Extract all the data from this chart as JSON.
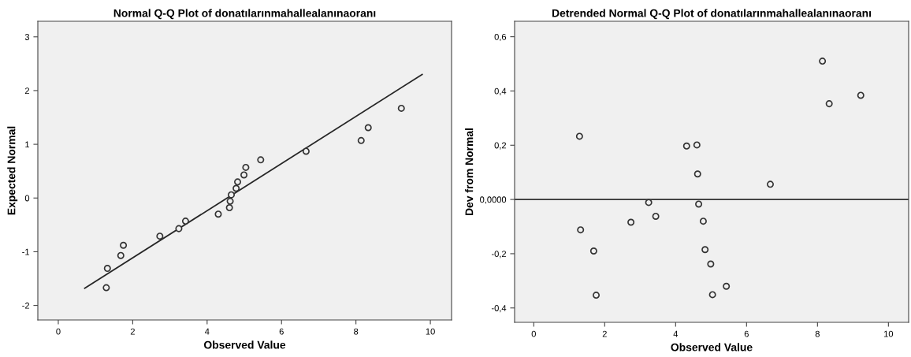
{
  "chart_data": [
    {
      "type": "scatter",
      "title": "Normal Q-Q Plot of donatılarınmahallealanınaoranı",
      "xlabel": "Observed Value",
      "ylabel": "Expected Normal",
      "x": [
        1.29,
        1.32,
        1.68,
        1.75,
        2.73,
        3.24,
        3.42,
        4.3,
        4.6,
        4.62,
        4.65,
        4.78,
        4.82,
        4.99,
        5.04,
        5.44,
        6.66,
        8.14,
        8.33,
        9.22
      ],
      "series": [
        {
          "color": "#333333",
          "marker": "circle",
          "values": [
            -1.67,
            -1.31,
            -1.07,
            -0.88,
            -0.71,
            -0.57,
            -0.43,
            -0.3,
            -0.18,
            -0.06,
            0.06,
            0.18,
            0.3,
            0.43,
            0.57,
            0.71,
            0.87,
            1.07,
            1.31,
            1.67
          ]
        },
        {
          "type": "line",
          "color": "#262626",
          "marker": "none",
          "line_style": "solid",
          "x": [
            0.71,
            9.78
          ],
          "values": [
            -1.68,
            2.3
          ]
        }
      ],
      "xlim": [
        -0.55,
        10.57
      ],
      "xticks": [
        0,
        2,
        4,
        6,
        8,
        10
      ],
      "ylim": [
        -2.27,
        3.29
      ],
      "yticks": [
        -2,
        -1,
        0,
        1,
        2,
        3
      ],
      "grid": false,
      "legend": false
    },
    {
      "type": "scatter",
      "title": "Detrended Normal Q-Q Plot of donatılarınmahallealanınaoranı",
      "xlabel": "Observed Value",
      "ylabel": "Dev from Normal",
      "x": [
        1.29,
        1.32,
        1.69,
        1.76,
        2.74,
        3.24,
        3.44,
        4.31,
        4.6,
        4.62,
        4.65,
        4.78,
        4.83,
        4.99,
        5.04,
        5.43,
        6.67,
        8.14,
        8.33,
        9.22
      ],
      "series": [
        {
          "color": "#333333",
          "marker": "circle",
          "values": [
            0.233,
            -0.112,
            -0.19,
            -0.353,
            -0.084,
            -0.011,
            -0.062,
            0.197,
            0.201,
            0.094,
            -0.017,
            -0.08,
            -0.185,
            -0.238,
            -0.351,
            -0.32,
            0.056,
            0.51,
            0.353,
            0.384
          ]
        }
      ],
      "ref_lines": [
        {
          "axis": "y",
          "value": 0,
          "color": "#333333",
          "line_style": "solid"
        }
      ],
      "xlim": [
        -0.54,
        10.57
      ],
      "xticks": [
        0,
        2,
        4,
        6,
        8,
        10
      ],
      "ylim": [
        -0.453,
        0.657
      ],
      "yticks": [
        {
          "value": -0.4,
          "label": "-0,4"
        },
        {
          "value": -0.2,
          "label": "-0,2"
        },
        {
          "value": 0,
          "label": "0,0000"
        },
        {
          "value": 0.2,
          "label": "0,2"
        },
        {
          "value": 0.4,
          "label": "0,4"
        },
        {
          "value": 0.6,
          "label": "0,6"
        }
      ],
      "grid": false,
      "legend": false
    }
  ]
}
